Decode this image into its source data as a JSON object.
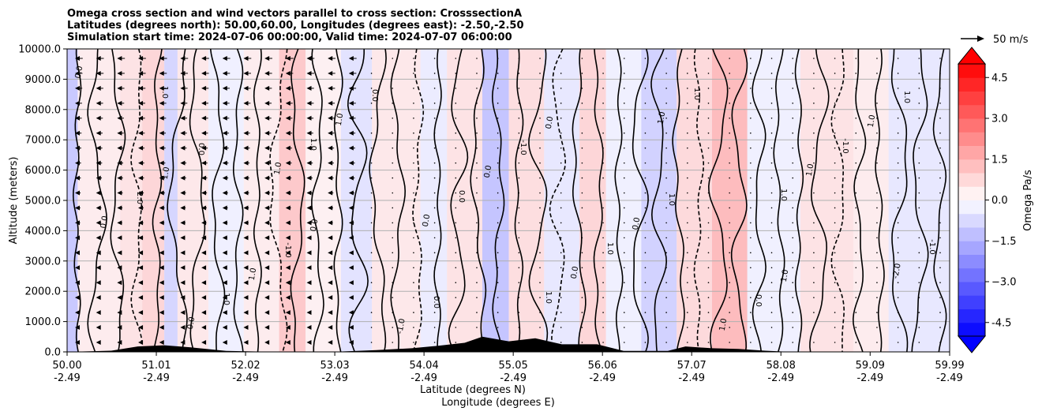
{
  "chart_data": {
    "type": "heatmap",
    "title_lines": [
      "Omega cross section and wind vectors parallel to cross section: CrosssectionA",
      "Latitudes (degrees north): 50.00,60.00, Longitudes (degrees east): -2.50,-2.50",
      "Simulation start time: 2024-07-06 00:00:00, Valid time: 2024-07-07 06:00:00"
    ],
    "ylabel": "Altitude (meters)",
    "xlabel_lat": "Latitude (degrees N)",
    "xlabel_lon": "Longitude (degrees E)",
    "ylim": [
      0,
      10000
    ],
    "xlim": [
      50.0,
      59.99
    ],
    "y_ticks": [
      "0.0",
      "1000.0",
      "2000.0",
      "3000.0",
      "4000.0",
      "5000.0",
      "6000.0",
      "7000.0",
      "8000.0",
      "9000.0",
      "10000.0"
    ],
    "y_tick_values": [
      0,
      1000,
      2000,
      3000,
      4000,
      5000,
      6000,
      7000,
      8000,
      9000,
      10000
    ],
    "x_tick_values": [
      50.0,
      51.01,
      52.02,
      53.03,
      54.04,
      55.05,
      56.06,
      57.07,
      58.08,
      59.09,
      59.99
    ],
    "x_ticks_lat": [
      "50.00",
      "51.01",
      "52.02",
      "53.03",
      "54.04",
      "55.05",
      "56.06",
      "57.07",
      "58.08",
      "59.09",
      "59.99"
    ],
    "x_ticks_lon": [
      "-2.49",
      "-2.49",
      "-2.49",
      "-2.49",
      "-2.49",
      "-2.49",
      "-2.49",
      "-2.49",
      "-2.49",
      "-2.49",
      "-2.49"
    ],
    "colorbar": {
      "label": "Omega Pa/s",
      "range": [
        -5,
        5
      ],
      "ticks": [
        "-4.5",
        "−3.0",
        "−1.5",
        "0.0",
        "1.5",
        "3.0",
        "4.5"
      ],
      "tick_values": [
        -4.5,
        -3.0,
        -1.5,
        0.0,
        1.5,
        3.0,
        4.5
      ],
      "colormap": "bwr",
      "extend": "both"
    },
    "contour_levels": [
      -2.0,
      -1.0,
      0.0,
      1.0,
      2.0
    ],
    "contour_labels": [
      "0.0",
      "0.0",
      "0.0",
      "0.0",
      "0.0",
      "1.0",
      "1.0",
      "1.0",
      "1.0",
      "-1.0",
      "-1.0",
      "-1.0",
      "0.0",
      "0.0",
      "1.0",
      "2.0",
      "1.0",
      "0.0",
      "0.0",
      "1.0",
      "1.0",
      "-1.0",
      "0.0",
      "1.0",
      "1.0",
      "0.0",
      "0.0",
      "1.0",
      "1.0",
      "-1.0",
      "0.0",
      "1.0",
      "0.0",
      "1.0",
      "1.0",
      "1.0",
      "-2.0",
      "1.0",
      "1.0"
    ],
    "quiver_key": {
      "label": "50 m/s",
      "value": 50
    },
    "omega_bands": [
      {
        "lat_start": 50.0,
        "lat_end": 50.12,
        "omega": -1.2
      },
      {
        "lat_start": 50.12,
        "lat_end": 50.6,
        "omega": 0.4
      },
      {
        "lat_start": 50.6,
        "lat_end": 50.85,
        "omega": 0.6
      },
      {
        "lat_start": 50.85,
        "lat_end": 51.1,
        "omega": 0.9
      },
      {
        "lat_start": 51.1,
        "lat_end": 51.25,
        "omega": -0.9
      },
      {
        "lat_start": 51.25,
        "lat_end": 51.6,
        "omega": 0.5
      },
      {
        "lat_start": 51.6,
        "lat_end": 52.0,
        "omega": -0.3
      },
      {
        "lat_start": 52.0,
        "lat_end": 52.4,
        "omega": 0.4
      },
      {
        "lat_start": 52.4,
        "lat_end": 52.7,
        "omega": 1.2
      },
      {
        "lat_start": 52.7,
        "lat_end": 53.1,
        "omega": 0.3
      },
      {
        "lat_start": 53.1,
        "lat_end": 53.45,
        "omega": -0.6
      },
      {
        "lat_start": 53.45,
        "lat_end": 54.0,
        "omega": 0.5
      },
      {
        "lat_start": 54.0,
        "lat_end": 54.3,
        "omega": -0.4
      },
      {
        "lat_start": 54.3,
        "lat_end": 54.7,
        "omega": 0.6
      },
      {
        "lat_start": 54.7,
        "lat_end": 55.0,
        "omega": -1.3
      },
      {
        "lat_start": 55.0,
        "lat_end": 55.4,
        "omega": 0.7
      },
      {
        "lat_start": 55.4,
        "lat_end": 55.8,
        "omega": -0.5
      },
      {
        "lat_start": 55.8,
        "lat_end": 56.1,
        "omega": 0.9
      },
      {
        "lat_start": 56.1,
        "lat_end": 56.5,
        "omega": -0.3
      },
      {
        "lat_start": 56.5,
        "lat_end": 56.9,
        "omega": -1.0
      },
      {
        "lat_start": 56.9,
        "lat_end": 57.3,
        "omega": 0.8
      },
      {
        "lat_start": 57.3,
        "lat_end": 57.7,
        "omega": 1.5
      },
      {
        "lat_start": 57.7,
        "lat_end": 58.3,
        "omega": -0.3
      },
      {
        "lat_start": 58.3,
        "lat_end": 58.9,
        "omega": 0.6
      },
      {
        "lat_start": 58.9,
        "lat_end": 59.3,
        "omega": 0.4
      },
      {
        "lat_start": 59.3,
        "lat_end": 59.99,
        "omega": -0.5
      }
    ],
    "terrain": [
      {
        "lat": 50.0,
        "alt": 0
      },
      {
        "lat": 50.5,
        "alt": 40
      },
      {
        "lat": 50.8,
        "alt": 180
      },
      {
        "lat": 51.1,
        "alt": 220
      },
      {
        "lat": 51.4,
        "alt": 150
      },
      {
        "lat": 51.8,
        "alt": 30
      },
      {
        "lat": 52.2,
        "alt": 10
      },
      {
        "lat": 53.0,
        "alt": 0
      },
      {
        "lat": 53.5,
        "alt": 60
      },
      {
        "lat": 53.9,
        "alt": 120
      },
      {
        "lat": 54.2,
        "alt": 200
      },
      {
        "lat": 54.5,
        "alt": 300
      },
      {
        "lat": 54.7,
        "alt": 500
      },
      {
        "lat": 55.0,
        "alt": 350
      },
      {
        "lat": 55.3,
        "alt": 450
      },
      {
        "lat": 55.6,
        "alt": 250
      },
      {
        "lat": 56.0,
        "alt": 250
      },
      {
        "lat": 56.3,
        "alt": 30
      },
      {
        "lat": 56.8,
        "alt": 30
      },
      {
        "lat": 57.0,
        "alt": 180
      },
      {
        "lat": 57.3,
        "alt": 120
      },
      {
        "lat": 57.6,
        "alt": 100
      },
      {
        "lat": 57.9,
        "alt": 40
      },
      {
        "lat": 58.2,
        "alt": 0
      },
      {
        "lat": 59.99,
        "alt": 0
      }
    ]
  }
}
